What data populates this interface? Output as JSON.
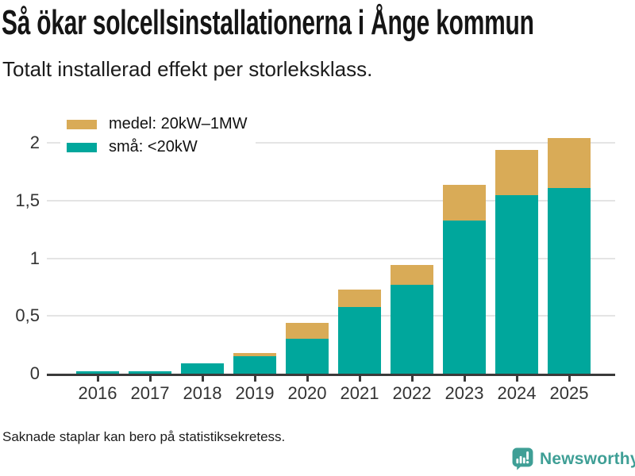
{
  "header": {
    "title": "Så ökar solcellsinstallationerna i Ånge kommun",
    "subtitle": "Totalt installerad effekt per storleksklass."
  },
  "legend": {
    "items": [
      {
        "label": "medel: 20kW–1MW",
        "color": "#d9ab57"
      },
      {
        "label": "små: <20kW",
        "color": "#00a79c"
      }
    ]
  },
  "footer": {
    "note": "Saknade staplar kan bero på statistiksekretess.",
    "brand": "Newsworthy"
  },
  "colors": {
    "small_series": "#00a79c",
    "medium_series": "#d9ab57",
    "axis": "#3a3a3a",
    "gridline": "#e4e4e4",
    "brand_teal": "#3f9f96"
  },
  "chart_data": {
    "type": "bar",
    "stacked": true,
    "title": "Så ökar solcellsinstallationerna i Ånge kommun",
    "subtitle": "Totalt installerad effekt per storleksklass.",
    "categories": [
      "2016",
      "2017",
      "2018",
      "2019",
      "2020",
      "2021",
      "2022",
      "2023",
      "2024",
      "2025"
    ],
    "series": [
      {
        "name": "små: <20kW",
        "color": "#00a79c",
        "values": [
          0.02,
          0.02,
          0.09,
          0.15,
          0.3,
          0.58,
          0.77,
          1.33,
          1.55,
          1.61
        ]
      },
      {
        "name": "medel: 20kW–1MW",
        "color": "#d9ab57",
        "values": [
          0,
          0,
          0,
          0.03,
          0.14,
          0.15,
          0.17,
          0.31,
          0.39,
          0.43
        ]
      }
    ],
    "xlabel": "",
    "ylabel": "",
    "ylim": [
      0,
      2.07
    ],
    "yticks": [
      {
        "value": 0,
        "label": "0"
      },
      {
        "value": 0.5,
        "label": "0,5"
      },
      {
        "value": 1,
        "label": "1"
      },
      {
        "value": 1.5,
        "label": "1,5"
      },
      {
        "value": 2,
        "label": "2"
      }
    ],
    "grid": "horizontal",
    "legend_position": "top-left",
    "footnote": "Saknade staplar kan bero på statistiksekretess."
  }
}
